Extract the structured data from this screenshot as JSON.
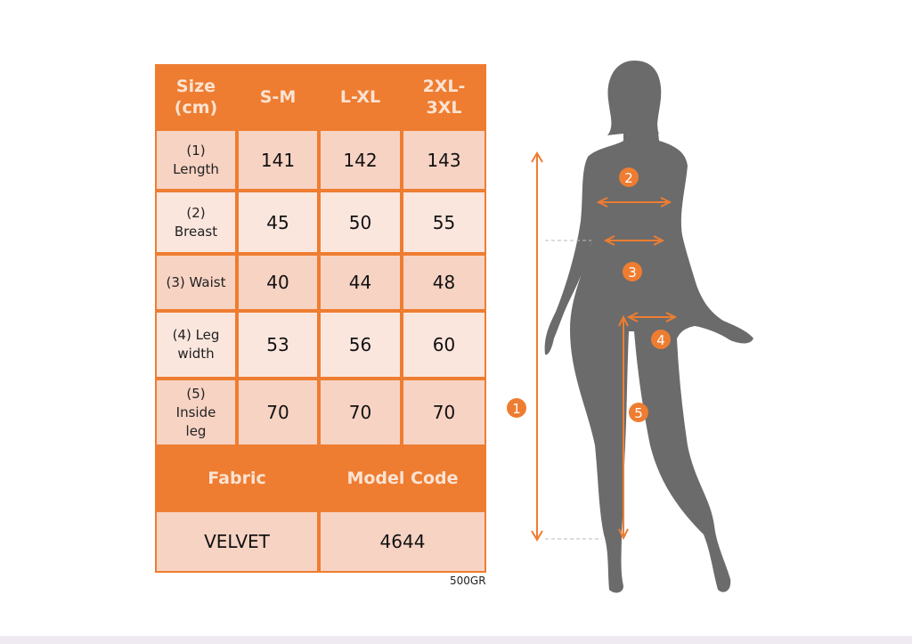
{
  "table": {
    "header": [
      "Size\n(cm)",
      "S-M",
      "L-XL",
      "2XL-\n3XL"
    ],
    "rows": [
      {
        "label": "(1)\nLength",
        "values": [
          "141",
          "142",
          "143"
        ]
      },
      {
        "label": "(2)\nBreast",
        "values": [
          "45",
          "50",
          "55"
        ]
      },
      {
        "label": "(3) Waist",
        "values": [
          "40",
          "44",
          "48"
        ]
      },
      {
        "label": "(4) Leg\nwidth",
        "values": [
          "53",
          "56",
          "60"
        ]
      },
      {
        "label": "(5)\nInside\nleg",
        "values": [
          "70",
          "70",
          "70"
        ]
      }
    ],
    "fabric_label": "Fabric",
    "model_code_label": "Model Code",
    "fabric_value": "VELVET",
    "model_code_value": "4644"
  },
  "weight": "500GR",
  "figure": {
    "markers": [
      "1",
      "2",
      "3",
      "4",
      "5"
    ]
  },
  "colors": {
    "accent": "#ee7d31",
    "row_dark": "#f7d3c4",
    "row_light": "#fbe6de",
    "silhouette": "#6b6b6b"
  }
}
